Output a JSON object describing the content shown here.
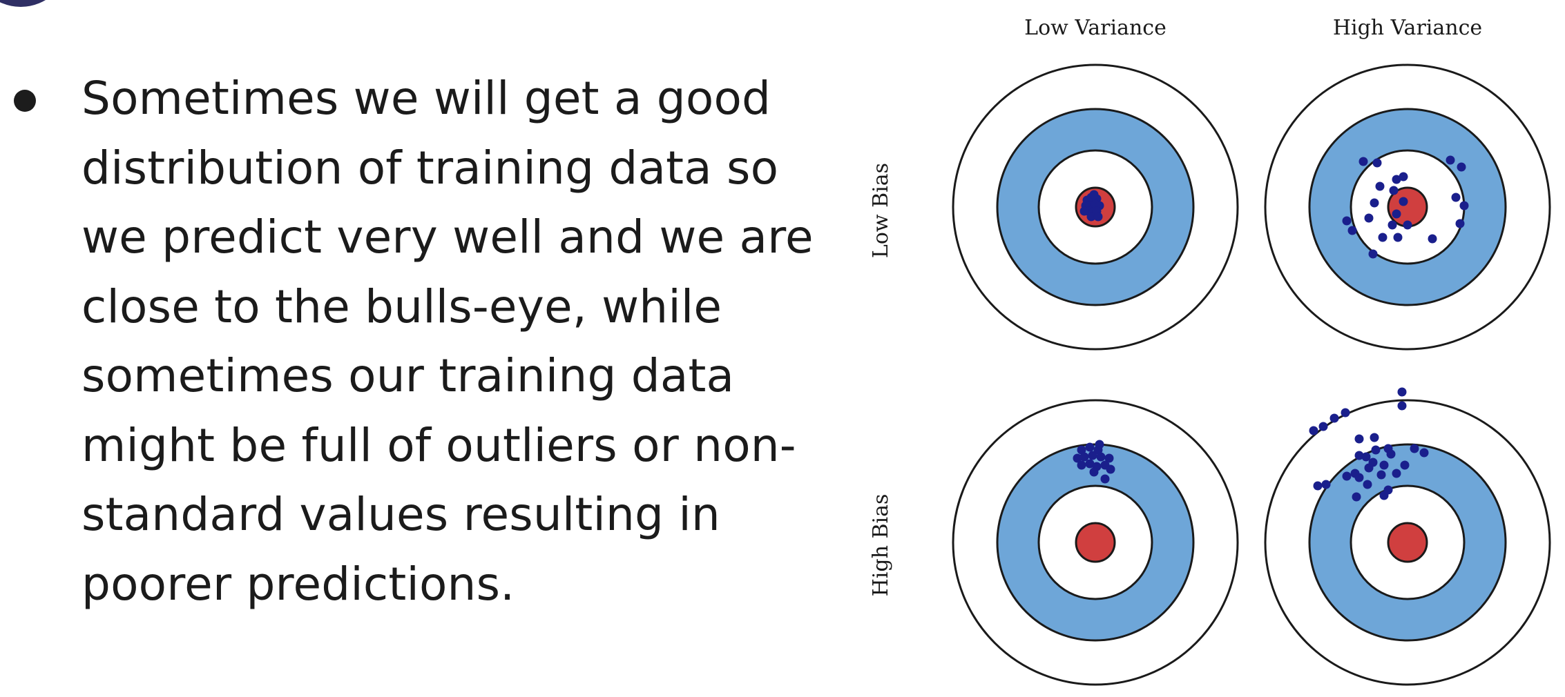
{
  "slide": {
    "bullet_text": "Sometimes we will get a good distribution of training data so we predict very well and we are close to the bulls-eye, while sometimes our training data might be full of outliers or non-standard values resulting in poorer predictions."
  },
  "figure": {
    "column_labels": [
      "Low Variance",
      "High Variance"
    ],
    "row_labels": [
      "Low Bias",
      "High Bias"
    ],
    "colors": {
      "ring_outline": "#1a1a1a",
      "blue_ring": "#6ea6d8",
      "bullseye": "#d03f3f",
      "dots": "#1a1f8c"
    },
    "targets": [
      {
        "name": "low-bias-low-variance",
        "dots": [
          [
            -12,
            -10
          ],
          [
            -6,
            -14
          ],
          [
            2,
            -12
          ],
          [
            -14,
            -2
          ],
          [
            -8,
            -2
          ],
          [
            0,
            -4
          ],
          [
            6,
            -2
          ],
          [
            -10,
            6
          ],
          [
            -4,
            8
          ],
          [
            2,
            6
          ],
          [
            -6,
            14
          ],
          [
            4,
            14
          ],
          [
            -16,
            6
          ],
          [
            -2,
            -18
          ]
        ]
      },
      {
        "name": "low-bias-high-variance",
        "dots": [
          [
            -64,
            -66
          ],
          [
            -44,
            -64
          ],
          [
            62,
            -68
          ],
          [
            78,
            -58
          ],
          [
            -40,
            -30
          ],
          [
            -16,
            -40
          ],
          [
            -48,
            -6
          ],
          [
            -20,
            -24
          ],
          [
            -6,
            -8
          ],
          [
            0,
            26
          ],
          [
            70,
            -14
          ],
          [
            82,
            -2
          ],
          [
            76,
            24
          ],
          [
            -88,
            20
          ],
          [
            -56,
            16
          ],
          [
            -80,
            34
          ],
          [
            -16,
            10
          ],
          [
            -22,
            26
          ],
          [
            -36,
            44
          ],
          [
            -14,
            44
          ],
          [
            36,
            46
          ],
          [
            -50,
            68
          ],
          [
            -6,
            -44
          ]
        ]
      },
      {
        "name": "high-bias-low-variance",
        "dots": [
          [
            -20,
            -134
          ],
          [
            -8,
            -138
          ],
          [
            4,
            -134
          ],
          [
            -16,
            -124
          ],
          [
            -4,
            -126
          ],
          [
            8,
            -124
          ],
          [
            20,
            -122
          ],
          [
            -20,
            -112
          ],
          [
            -8,
            -114
          ],
          [
            2,
            -110
          ],
          [
            14,
            -112
          ],
          [
            22,
            -106
          ],
          [
            -26,
            -122
          ],
          [
            -2,
            -102
          ],
          [
            14,
            -92
          ],
          [
            6,
            -142
          ]
        ]
      },
      {
        "name": "high-bias-high-variance",
        "dots": [
          [
            -8,
            -218
          ],
          [
            -8,
            -198
          ],
          [
            -106,
            -180
          ],
          [
            -90,
            -188
          ],
          [
            -136,
            -162
          ],
          [
            -122,
            -168
          ],
          [
            -70,
            -150
          ],
          [
            -48,
            -152
          ],
          [
            -28,
            -136
          ],
          [
            -46,
            -134
          ],
          [
            -70,
            -126
          ],
          [
            -60,
            -124
          ],
          [
            -50,
            -116
          ],
          [
            -34,
            -112
          ],
          [
            -24,
            -128
          ],
          [
            -56,
            -108
          ],
          [
            -38,
            -98
          ],
          [
            -70,
            -94
          ],
          [
            -58,
            -84
          ],
          [
            -76,
            -100
          ],
          [
            -88,
            -96
          ],
          [
            -16,
            -100
          ],
          [
            -4,
            -112
          ],
          [
            10,
            -136
          ],
          [
            24,
            -130
          ],
          [
            -130,
            -82
          ],
          [
            -118,
            -84
          ],
          [
            -74,
            -66
          ],
          [
            -34,
            -68
          ],
          [
            -28,
            -76
          ]
        ]
      }
    ]
  }
}
